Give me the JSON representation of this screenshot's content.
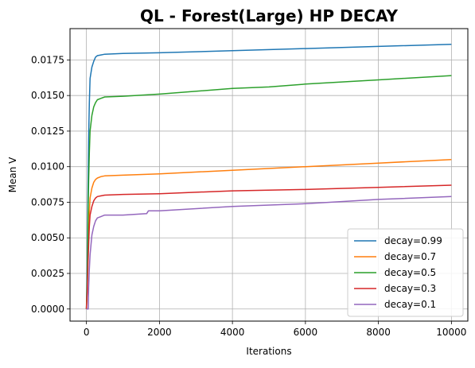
{
  "chart_data": {
    "type": "line",
    "title": "QL - Forest(Large) HP DECAY",
    "xlabel": "Iterations",
    "ylabel": "Mean V",
    "xlim": [
      -450,
      10450
    ],
    "ylim": [
      -0.00085,
      0.0197
    ],
    "xticks": [
      0,
      2000,
      4000,
      6000,
      8000,
      10000
    ],
    "xtick_labels": [
      "0",
      "2000",
      "4000",
      "6000",
      "8000",
      "10000"
    ],
    "yticks": [
      0,
      0.0025,
      0.005,
      0.0075,
      0.01,
      0.0125,
      0.015,
      0.0175
    ],
    "ytick_labels": [
      "0.0000",
      "0.0025",
      "0.0050",
      "0.0075",
      "0.0100",
      "0.0125",
      "0.0150",
      "0.0175"
    ],
    "grid": true,
    "legend_position": "lower-right",
    "series": [
      {
        "name": "decay=0.99",
        "color": "#1f77b4",
        "x": [
          0,
          20,
          40,
          60,
          80,
          100,
          150,
          200,
          250,
          300,
          400,
          500,
          1000,
          2000,
          4000,
          6000,
          8000,
          10000
        ],
        "y": [
          0.0,
          0.003,
          0.008,
          0.012,
          0.0145,
          0.0162,
          0.017,
          0.0174,
          0.0177,
          0.0178,
          0.01785,
          0.0179,
          0.01795,
          0.018,
          0.01815,
          0.0183,
          0.01845,
          0.0186
        ]
      },
      {
        "name": "decay=0.7",
        "color": "#ff7f0e",
        "x": [
          0,
          20,
          40,
          60,
          80,
          100,
          150,
          200,
          250,
          300,
          400,
          500,
          1000,
          2000,
          4000,
          6000,
          8000,
          10000
        ],
        "y": [
          0.0,
          0.0015,
          0.0038,
          0.0055,
          0.0068,
          0.0078,
          0.0085,
          0.0089,
          0.0091,
          0.0092,
          0.0093,
          0.00935,
          0.0094,
          0.0095,
          0.00975,
          0.01,
          0.01025,
          0.0105
        ]
      },
      {
        "name": "decay=0.5",
        "color": "#2ca02c",
        "x": [
          0,
          20,
          40,
          60,
          80,
          100,
          150,
          200,
          250,
          300,
          400,
          500,
          1000,
          2000,
          4000,
          5000,
          6000,
          8000,
          10000
        ],
        "y": [
          0.0,
          0.002,
          0.006,
          0.009,
          0.011,
          0.0125,
          0.0136,
          0.0142,
          0.0145,
          0.0147,
          0.0148,
          0.0149,
          0.01495,
          0.0151,
          0.0155,
          0.0156,
          0.0158,
          0.0161,
          0.0164
        ]
      },
      {
        "name": "decay=0.3",
        "color": "#d62728",
        "x": [
          0,
          20,
          40,
          60,
          80,
          100,
          150,
          200,
          250,
          300,
          400,
          500,
          1000,
          2000,
          4000,
          6000,
          8000,
          10000
        ],
        "y": [
          0.0,
          0.0012,
          0.003,
          0.0045,
          0.0058,
          0.0066,
          0.0072,
          0.0076,
          0.0078,
          0.0079,
          0.00795,
          0.008,
          0.00805,
          0.0081,
          0.0083,
          0.0084,
          0.00855,
          0.0087
        ]
      },
      {
        "name": "decay=0.1",
        "color": "#9467bd",
        "x": [
          0,
          50,
          60,
          80,
          100,
          150,
          200,
          250,
          300,
          400,
          500,
          1000,
          1650,
          1700,
          2000,
          4000,
          6000,
          8000,
          10000
        ],
        "y": [
          0.0,
          0.0,
          0.0015,
          0.0028,
          0.0038,
          0.0052,
          0.0058,
          0.0062,
          0.0064,
          0.0065,
          0.0066,
          0.0066,
          0.0067,
          0.0069,
          0.0069,
          0.0072,
          0.0074,
          0.0077,
          0.0079
        ]
      }
    ]
  }
}
